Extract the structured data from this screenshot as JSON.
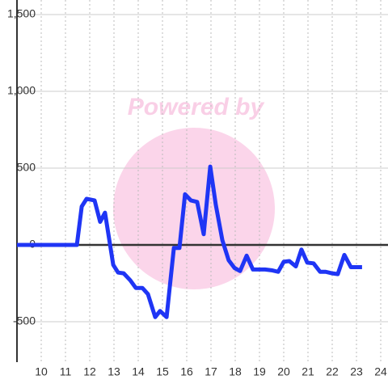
{
  "chart_data": {
    "type": "line",
    "watermark": "Powered by",
    "x": [
      9,
      11.47,
      11.67,
      11.87,
      12.2,
      12.43,
      12.63,
      12.97,
      13.17,
      13.4,
      13.67,
      13.9,
      14.17,
      14.4,
      14.7,
      14.9,
      15.17,
      15.47,
      15.7,
      15.93,
      16.17,
      16.43,
      16.7,
      16.97,
      17.2,
      17.47,
      17.73,
      17.97,
      18.2,
      18.47,
      18.73,
      18.97,
      19.23,
      19.5,
      19.77,
      20.0,
      20.23,
      20.5,
      20.73,
      20.97,
      21.23,
      21.5,
      21.73,
      22.0,
      22.23,
      22.5,
      22.77,
      23.23
    ],
    "series": [
      {
        "color": "#1f35f5",
        "values": [
          0,
          0,
          250,
          300,
          290,
          150,
          210,
          -130,
          -180,
          -185,
          -230,
          -280,
          -280,
          -320,
          -470,
          -430,
          -470,
          -20,
          -20,
          330,
          290,
          280,
          70,
          510,
          260,
          30,
          -100,
          -150,
          -170,
          -70,
          -160,
          -160,
          -160,
          -165,
          -175,
          -110,
          -105,
          -140,
          -30,
          -115,
          -120,
          -175,
          -175,
          -185,
          -190,
          -65,
          -145,
          -145
        ]
      }
    ],
    "xlim": [
      9,
      24.3
    ],
    "xticks": [
      10,
      11,
      12,
      13,
      14,
      15,
      16,
      17,
      18,
      19,
      20,
      21,
      22,
      23,
      24
    ],
    "ylim": [
      -750,
      1500
    ],
    "yticks": [
      {
        "value": -500,
        "label": "-500"
      },
      0,
      500,
      {
        "value": 1000,
        "label": "1,000"
      },
      {
        "value": 1500,
        "label": "1,500"
      }
    ],
    "grid": true
  }
}
